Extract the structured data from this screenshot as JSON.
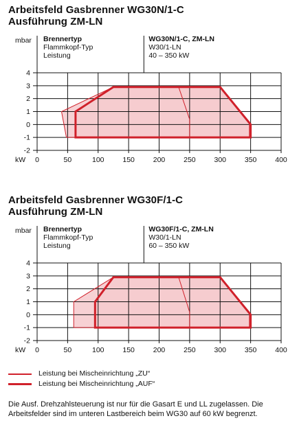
{
  "charts": [
    {
      "title_line1": "Arbeitsfeld Gasbrenner WG30N/1-C",
      "title_line2": "Ausführung ZM-LN",
      "info_labels": [
        "Brennertyp",
        "Flammkopf-Typ",
        "Leistung"
      ],
      "info_values": [
        "WG30N/1-C, ZM-LN",
        "W30/1-LN",
        "40 – 350 kW"
      ]
    },
    {
      "title_line1": "Arbeitsfeld Gasbrenner WG30F/1-C",
      "title_line2": "Ausführung ZM-LN",
      "info_labels": [
        "Brennertyp",
        "Flammkopf-Typ",
        "Leistung"
      ],
      "info_values": [
        "WG30F/1-C, ZM-LN",
        "W30/1-LN",
        "60 – 350 kW"
      ]
    }
  ],
  "chart_data": [
    {
      "type": "area",
      "xlabel": "kW",
      "ylabel": "mbar",
      "xlim": [
        0,
        400
      ],
      "ylim": [
        -2,
        4
      ],
      "x_ticks": [
        0,
        50,
        100,
        150,
        200,
        250,
        300,
        350,
        400
      ],
      "y_ticks": [
        4,
        3,
        2,
        1,
        0,
        -1,
        -2
      ],
      "grid": true,
      "series": [
        {
          "name": "Leistung bei Mischeinrichtung „ZU“",
          "polygon": [
            [
              48,
              -1
            ],
            [
              40,
              1
            ],
            [
              125,
              2.9
            ],
            [
              300,
              2.9
            ],
            [
              348,
              0.2
            ],
            [
              348,
              -1
            ]
          ]
        },
        {
          "name": "Leistung bei Mischeinrichtung „AUF“",
          "polygon": [
            [
              63,
              -1
            ],
            [
              63,
              1
            ],
            [
              125,
              2.9
            ],
            [
              300,
              2.9
            ],
            [
              350,
              0
            ],
            [
              350,
              -1
            ]
          ]
        }
      ],
      "divider_lines": [
        [
          [
            232,
            2.9
          ],
          [
            250,
            0.4
          ],
          [
            250,
            -1
          ]
        ]
      ]
    },
    {
      "type": "area",
      "xlabel": "kW",
      "ylabel": "mbar",
      "xlim": [
        0,
        400
      ],
      "ylim": [
        -2,
        4
      ],
      "x_ticks": [
        0,
        50,
        100,
        150,
        200,
        250,
        300,
        350,
        400
      ],
      "y_ticks": [
        4,
        3,
        2,
        1,
        0,
        -1,
        -2
      ],
      "grid": true,
      "series": [
        {
          "name": "Leistung bei Mischeinrichtung „ZU“",
          "polygon": [
            [
              60,
              -1
            ],
            [
              60,
              1
            ],
            [
              125,
              2.9
            ],
            [
              300,
              2.9
            ],
            [
              348,
              0.2
            ],
            [
              348,
              -1
            ]
          ]
        },
        {
          "name": "Leistung bei Mischeinrichtung „AUF“",
          "polygon": [
            [
              95,
              -1
            ],
            [
              95,
              1
            ],
            [
              125,
              2.9
            ],
            [
              300,
              2.9
            ],
            [
              350,
              0
            ],
            [
              350,
              -1
            ]
          ]
        }
      ],
      "divider_lines": [
        [
          [
            232,
            2.9
          ],
          [
            250,
            0.2
          ],
          [
            250,
            -1
          ]
        ]
      ]
    }
  ],
  "legend": [
    {
      "label": "Leistung bei Mischeinrichtung „ZU“",
      "color": "#d0202a",
      "weight": "thin"
    },
    {
      "label": "Leistung bei Mischeinrichtung „AUF“",
      "color": "#d0202a",
      "weight": "thick"
    }
  ],
  "footnote": "Die Ausf. Drehzahlsteuerung ist nur für die Gasart E und LL zugelassen. Die Arbeitsfelder sind im unteren Lastbereich beim WG30 auf 60 kW begrenzt.",
  "colors": {
    "accent": "#d0202a",
    "fill": "#f6c9cd",
    "grid": "#111111"
  }
}
